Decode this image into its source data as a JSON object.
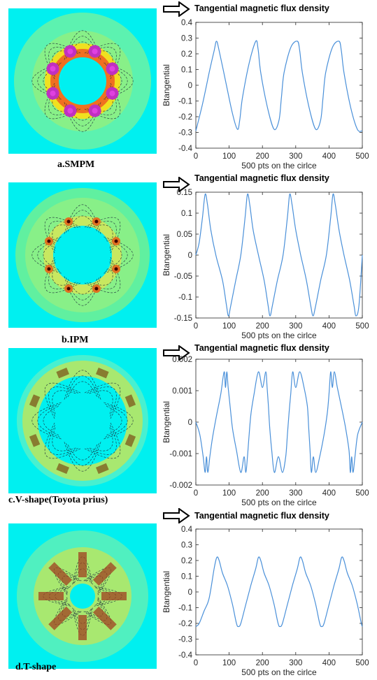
{
  "panels": [
    {
      "caption": "a.SMPM",
      "title": "Tangential magnetic flux density",
      "variant": "smpm",
      "colors": {
        "background": "#00f0f0",
        "ring": "#88f088",
        "magnet": "#c030c0"
      }
    },
    {
      "caption": "b.IPM",
      "title": "Tangential magnetic flux density",
      "variant": "ipm",
      "colors": {
        "background": "#00f0f0",
        "ring": "#88f088",
        "magnet": "#e07020"
      }
    },
    {
      "caption": "c.V-shape(Toyota prius)",
      "title": "Tangential magnetic flux density",
      "variant": "vshape",
      "colors": {
        "background": "#00f0f0",
        "ring": "#a8e870",
        "magnet": "#806020"
      }
    },
    {
      "caption": "d.T-shape",
      "title": "Tangential magnetic flux density",
      "variant": "tshape",
      "colors": {
        "background": "#00f0f0",
        "ring": "#a8e870",
        "magnet": "#a04020"
      }
    }
  ],
  "chart_data": [
    {
      "type": "line",
      "xlabel": "500 pts on the cirlce",
      "ylabel": "Btangential",
      "xlim": [
        0,
        500
      ],
      "ylim": [
        -0.4,
        0.4
      ],
      "xticks": [
        "0",
        "100",
        "200",
        "300",
        "400",
        "500"
      ],
      "yticks": [
        "0.4",
        "0.3",
        "0.2",
        "0.1",
        "0",
        "-0.1",
        "-0.2",
        "-0.3",
        "-0.4"
      ],
      "series": [
        {
          "color": "#4a90d9",
          "x": [
            0,
            20,
            40,
            55,
            62,
            70,
            90,
            110,
            125,
            132,
            140,
            160,
            180,
            187,
            195,
            215,
            235,
            250,
            257,
            265,
            285,
            305,
            312,
            320,
            340,
            360,
            375,
            382,
            390,
            410,
            430,
            437,
            445,
            465,
            485,
            500
          ],
          "y": [
            -0.29,
            -0.12,
            0.08,
            0.22,
            0.28,
            0.22,
            0.02,
            -0.18,
            -0.28,
            -0.22,
            -0.08,
            0.14,
            0.28,
            0.23,
            0.08,
            -0.14,
            -0.28,
            -0.22,
            -0.08,
            0.08,
            0.24,
            0.28,
            0.22,
            0.08,
            -0.14,
            -0.28,
            -0.22,
            -0.08,
            0.08,
            0.24,
            0.28,
            0.22,
            0.08,
            -0.14,
            -0.28,
            -0.29
          ]
        }
      ]
    },
    {
      "type": "line",
      "xlabel": "500 pts on the cirlce",
      "ylabel": "Btangential",
      "xlim": [
        0,
        500
      ],
      "ylim": [
        -0.15,
        0.15
      ],
      "xticks": [
        "0",
        "100",
        "200",
        "300",
        "400",
        "500"
      ],
      "yticks": [
        "0.15",
        "0.1",
        "0.05",
        "0",
        "-0.05",
        "-0.1",
        "-0.15"
      ],
      "series": [
        {
          "color": "#4a90d9",
          "x": [
            0,
            10,
            20,
            28,
            35,
            45,
            60,
            80,
            92,
            98,
            105,
            120,
            135,
            148,
            155,
            162,
            172,
            188,
            205,
            217,
            223,
            230,
            245,
            262,
            275,
            282,
            289,
            300,
            315,
            332,
            345,
            352,
            360,
            375,
            392,
            405,
            412,
            419,
            430,
            445,
            462,
            475,
            481,
            490,
            500
          ],
          "y": [
            0.0,
            0.03,
            0.09,
            0.145,
            0.12,
            0.06,
            0.0,
            -0.06,
            -0.12,
            -0.145,
            -0.12,
            -0.06,
            0.0,
            0.09,
            0.145,
            0.12,
            0.06,
            0.0,
            -0.06,
            -0.12,
            -0.145,
            -0.12,
            -0.06,
            0.0,
            0.09,
            0.145,
            0.12,
            0.06,
            0.0,
            -0.06,
            -0.12,
            -0.145,
            -0.12,
            -0.06,
            0.0,
            0.09,
            0.145,
            0.12,
            0.06,
            0.0,
            -0.06,
            -0.12,
            -0.145,
            -0.12,
            0.0
          ]
        }
      ]
    },
    {
      "type": "line",
      "xlabel": "500 pts on the cirlce",
      "ylabel": "Btangential",
      "xlim": [
        0,
        500
      ],
      "ylim": [
        -0.002,
        0.002
      ],
      "xticks": [
        "0",
        "100",
        "200",
        "300",
        "400",
        "500"
      ],
      "yticks": [
        "0.002",
        "0.001",
        "0",
        "-0.001",
        "-0.002"
      ],
      "series": [
        {
          "color": "#4a90d9",
          "x": [
            0,
            12,
            22,
            28,
            32,
            36,
            42,
            50,
            62,
            75,
            85,
            89,
            93,
            97,
            103,
            110,
            122,
            135,
            145,
            150,
            155,
            160,
            166,
            175,
            188,
            200,
            210,
            214,
            218,
            222,
            228,
            236,
            248,
            260,
            270,
            275,
            280,
            285,
            291,
            300,
            312,
            325,
            335,
            339,
            343,
            347,
            353,
            360,
            372,
            385,
            395,
            400,
            405,
            410,
            416,
            425,
            437,
            450,
            460,
            464,
            468,
            472,
            478,
            486,
            500
          ],
          "y": [
            0.0,
            -0.0004,
            -0.0011,
            -0.0016,
            -0.0011,
            -0.0016,
            -0.0011,
            -0.0005,
            0.0002,
            0.0009,
            0.0016,
            0.0011,
            0.0016,
            0.0011,
            0.0005,
            -0.0002,
            -0.0009,
            -0.0016,
            -0.0011,
            -0.0016,
            -0.0011,
            -0.0004,
            0.0003,
            0.0009,
            0.0016,
            0.0011,
            0.0016,
            0.0011,
            0.0005,
            -0.0002,
            -0.0009,
            -0.0016,
            -0.0011,
            -0.0016,
            -0.0011,
            -0.0004,
            0.0003,
            0.0009,
            0.0016,
            0.0011,
            0.0016,
            0.0011,
            0.0005,
            -0.0002,
            -0.0009,
            -0.0016,
            -0.0011,
            -0.0016,
            -0.0011,
            -0.0004,
            0.0003,
            0.0009,
            0.0016,
            0.0011,
            0.0016,
            0.0011,
            0.0005,
            -0.0002,
            -0.0009,
            -0.0016,
            -0.0011,
            -0.0016,
            -0.0011,
            -0.0004,
            0.0
          ]
        }
      ]
    },
    {
      "type": "line",
      "xlabel": "500 pts on the cirlce",
      "ylabel": "Btangential",
      "xlim": [
        0,
        500
      ],
      "ylim": [
        -0.4,
        0.4
      ],
      "xticks": [
        "0",
        "100",
        "200",
        "300",
        "400",
        "500"
      ],
      "yticks": [
        "0.4",
        "0.3",
        "0.2",
        "0.1",
        "0",
        "-0.1",
        "-0.2",
        "-0.3",
        "-0.4"
      ],
      "series": [
        {
          "color": "#4a90d9",
          "x": [
            0,
            10,
            25,
            40,
            55,
            63,
            70,
            80,
            95,
            110,
            122,
            128,
            135,
            150,
            165,
            180,
            188,
            195,
            205,
            220,
            235,
            247,
            253,
            260,
            275,
            290,
            305,
            313,
            320,
            330,
            345,
            360,
            372,
            378,
            385,
            400,
            415,
            430,
            438,
            445,
            455,
            470,
            485,
            497,
            500
          ],
          "y": [
            -0.22,
            -0.2,
            -0.12,
            -0.04,
            0.15,
            0.22,
            0.2,
            0.12,
            0.04,
            -0.08,
            -0.2,
            -0.22,
            -0.2,
            -0.08,
            0.04,
            0.15,
            0.22,
            0.2,
            0.12,
            0.04,
            -0.08,
            -0.2,
            -0.22,
            -0.2,
            -0.08,
            0.04,
            0.15,
            0.22,
            0.2,
            0.12,
            0.04,
            -0.08,
            -0.2,
            -0.22,
            -0.2,
            -0.08,
            0.04,
            0.15,
            0.22,
            0.2,
            0.12,
            0.04,
            -0.08,
            -0.2,
            -0.22
          ]
        }
      ]
    }
  ]
}
